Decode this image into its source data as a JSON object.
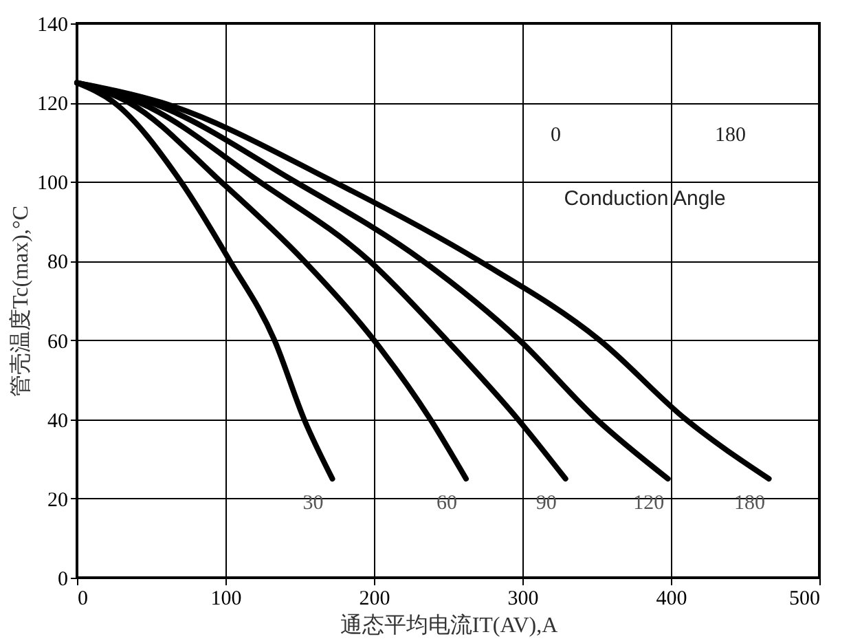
{
  "chart_data": {
    "type": "line",
    "xlabel": "通态平均电流IT(AV),A",
    "ylabel": "管壳温度Tc(max),°C",
    "xlim": [
      0,
      500
    ],
    "xticks": [
      0,
      100,
      200,
      300,
      400,
      500
    ],
    "ylim": [
      0,
      140
    ],
    "yticks": [
      0,
      20,
      40,
      60,
      80,
      100,
      120,
      140
    ],
    "grid": true,
    "legend": false,
    "marker": "none",
    "line_style": "solid",
    "series": [
      {
        "name": "30",
        "color": "#000000",
        "x": [
          0,
          25,
          70,
          103,
          133,
          153,
          172
        ],
        "values": [
          125,
          120,
          100,
          80,
          60,
          40,
          25
        ]
      },
      {
        "name": "60",
        "color": "#000000",
        "x": [
          0,
          35,
          97,
          153,
          200,
          238,
          262
        ],
        "values": [
          125,
          120,
          100,
          80,
          60,
          40,
          25
        ]
      },
      {
        "name": "90",
        "color": "#000000",
        "x": [
          0,
          42,
          123,
          197,
          249,
          297,
          329
        ],
        "values": [
          125,
          120,
          100,
          80,
          60,
          40,
          25
        ]
      },
      {
        "name": "120",
        "color": "#000000",
        "x": [
          0,
          50,
          147,
          233,
          298,
          350,
          398
        ],
        "values": [
          125,
          120,
          100,
          80,
          60,
          40,
          25
        ]
      },
      {
        "name": "180",
        "color": "#000000",
        "x": [
          0,
          57,
          173,
          271,
          352,
          410,
          466
        ],
        "values": [
          125,
          120,
          100,
          80,
          60,
          40,
          25
        ]
      }
    ],
    "annotations": [
      "0",
      "180",
      "Conduction Angle"
    ]
  }
}
